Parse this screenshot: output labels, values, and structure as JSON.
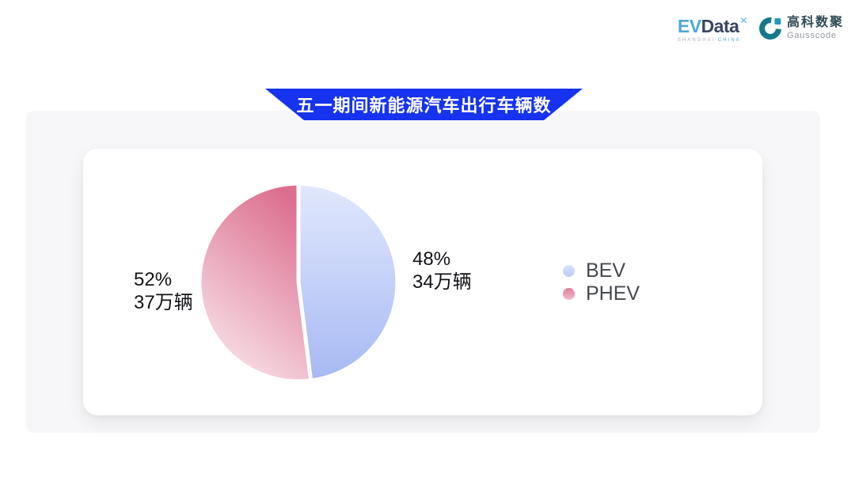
{
  "header": {
    "evdata": {
      "wordmark_ev": "EV",
      "wordmark_data": "Data",
      "wordmark_mark": "✕",
      "subtitle_left": "SHANGHAI",
      "subtitle_right": "CHINA"
    },
    "gausscode": {
      "cn_name": "高科数聚",
      "en_name": "Gausscode",
      "icon_ring_color": "#17788c",
      "icon_square_color": "#2497b8"
    }
  },
  "banner": {
    "title": "五一期间新能源汽车出行车辆数",
    "color": "#1733f0"
  },
  "chart_data": {
    "type": "pie",
    "title": "五一期间新能源汽车出行车辆数",
    "start_angle_deg": -90,
    "direction": "clockwise",
    "legend_position": "right",
    "slices": [
      {
        "name": "BEV",
        "percent": 48,
        "value": 34,
        "unit": "万辆",
        "pct_label": "48%",
        "qty_label": "34万辆",
        "gradient": [
          "#e1e8fd",
          "#a7b9f3"
        ],
        "legend_dot": [
          "#d8e1fb",
          "#bcccf8"
        ]
      },
      {
        "name": "PHEV",
        "percent": 52,
        "value": 37,
        "unit": "万辆",
        "pct_label": "52%",
        "qty_label": "37万辆",
        "gradient": [
          "#dc6f8f",
          "#fae9ee"
        ],
        "legend_dot": [
          "#e17e9a",
          "#f1bbc9"
        ]
      }
    ]
  }
}
